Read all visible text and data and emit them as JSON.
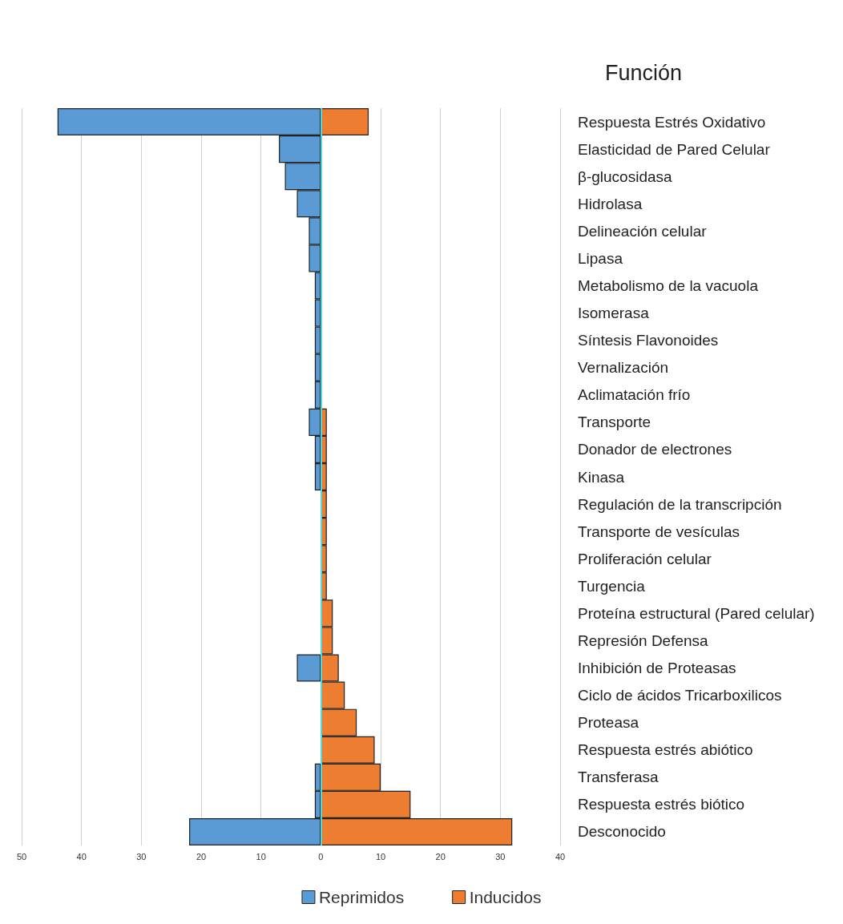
{
  "chart_data": {
    "type": "bar",
    "orientation": "horizontal",
    "title": "Función",
    "categories": [
      "Respuesta Estrés Oxidativo",
      "Elasticidad de Pared Celular",
      "β-glucosidasa",
      "Hidrolasa",
      "Delineación celular",
      "Lipasa",
      "Metabolismo de la vacuola",
      "Isomerasa",
      "Síntesis Flavonoides",
      "Vernalización",
      "Aclimatación frío",
      "Transporte",
      "Donador de electrones",
      "Kinasa",
      "Regulación de la transcripción",
      "Transporte de vesículas",
      "Proliferación celular",
      "Turgencia",
      "Proteína estructural (Pared celular)",
      "Represión Defensa",
      "Inhibición de Proteasas",
      "Ciclo de ácidos Tricarboxilicos",
      "Proteasa",
      "Respuesta estrés abiótico",
      "Transferasa",
      "Respuesta estrés biótico",
      "Desconocido"
    ],
    "series": [
      {
        "name": "Reprimidos",
        "color": "#5b9bd5",
        "values": [
          -44,
          -7,
          -6,
          -4,
          -2,
          -2,
          -1,
          -1,
          -1,
          -1,
          -1,
          -2,
          -1,
          -1,
          0,
          0,
          0,
          0,
          0,
          0,
          -4,
          0,
          0,
          0,
          -1,
          -1,
          -22
        ]
      },
      {
        "name": "Inducidos",
        "color": "#ed7d31",
        "values": [
          8,
          0,
          0,
          0,
          0,
          0,
          0,
          0,
          0,
          0,
          0,
          1,
          1,
          1,
          1,
          1,
          1,
          1,
          2,
          2,
          3,
          4,
          6,
          9,
          10,
          15,
          32
        ]
      }
    ],
    "xlim": [
      -50,
      40
    ],
    "xticks": [
      {
        "value": -50,
        "label": "50"
      },
      {
        "value": -40,
        "label": "40"
      },
      {
        "value": -30,
        "label": "30"
      },
      {
        "value": -20,
        "label": "20"
      },
      {
        "value": -10,
        "label": "10"
      },
      0,
      10,
      20,
      30,
      40
    ],
    "ref_lines": [
      {
        "axis": "x",
        "value": 0,
        "color": "#4fd8d8"
      }
    ],
    "grid": "x",
    "legend": "bottom"
  }
}
